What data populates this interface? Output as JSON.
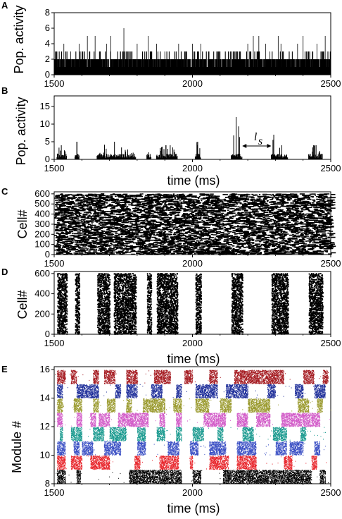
{
  "chart_data": [
    {
      "panel": "A",
      "type": "bar",
      "ylabel": "Pop. activity",
      "xlabel": "",
      "xlim": [
        1500,
        2500
      ],
      "ylim": [
        0,
        8
      ],
      "xticks": [
        "1500",
        "2000",
        "2500"
      ],
      "yticks": [
        "0",
        "2",
        "4",
        "6",
        "8"
      ],
      "baseline_activity": 2,
      "peak_times": [
        1535,
        1560,
        1590,
        1620,
        1648,
        1690,
        1705,
        1740,
        1752,
        1800,
        1840,
        1870,
        1900,
        1950,
        1975,
        2000,
        2030,
        2060,
        2100,
        2130,
        2200,
        2220,
        2240,
        2265,
        2280,
        2310,
        2320,
        2350,
        2380,
        2400,
        2450,
        2480
      ],
      "peak_values": [
        4,
        3,
        4,
        5,
        5,
        4,
        5,
        3,
        6,
        4,
        5,
        4,
        3,
        4,
        3,
        4,
        4,
        3,
        3,
        3,
        4,
        5,
        5,
        4,
        3,
        5,
        4,
        3,
        4,
        5,
        4,
        5
      ]
    },
    {
      "panel": "B",
      "type": "bar",
      "ylabel": "Pop. activity",
      "xlabel": "time (ms)",
      "xlim": [
        1500,
        2500
      ],
      "ylim": [
        0,
        18
      ],
      "xticks": [
        "1500",
        "2000",
        "2500"
      ],
      "yticks": [
        "0",
        "5",
        "10",
        "15"
      ],
      "bursts": [
        {
          "start": 1510,
          "end": 1545,
          "peak": 4
        },
        {
          "start": 1575,
          "end": 1590,
          "peak": 5
        },
        {
          "start": 1655,
          "end": 1795,
          "peak": 5
        },
        {
          "start": 1835,
          "end": 1850,
          "peak": 2
        },
        {
          "start": 1870,
          "end": 1945,
          "peak": 4
        },
        {
          "start": 2010,
          "end": 2030,
          "peak": 5
        },
        {
          "start": 2140,
          "end": 2180,
          "peak": 12
        },
        {
          "start": 2285,
          "end": 2305,
          "peak": 7
        },
        {
          "start": 2305,
          "end": 2345,
          "peak": 4
        },
        {
          "start": 2420,
          "end": 2470,
          "peak": 4
        }
      ],
      "annotation": {
        "text": "l",
        "subscript": "s",
        "from": 2180,
        "to": 2285
      }
    },
    {
      "panel": "C",
      "type": "scatter",
      "ylabel": "Cell#",
      "xlabel": "",
      "xlim": [
        1500,
        2500
      ],
      "ylim": [
        0,
        620
      ],
      "xticks": [
        "1500",
        "2000",
        "2500"
      ],
      "yticks": [
        "0",
        "100",
        "200",
        "300",
        "400",
        "500",
        "600"
      ],
      "n_cells": 600,
      "description_pattern": "dense asynchronous raster"
    },
    {
      "panel": "D",
      "type": "scatter",
      "ylabel": "Cell#",
      "xlabel": "time (ms)",
      "xlim": [
        1500,
        2500
      ],
      "ylim": [
        0,
        620
      ],
      "xticks": [
        "1500",
        "2000",
        "2500"
      ],
      "yticks": [
        "0",
        "200",
        "400",
        "600"
      ],
      "n_cells": 600,
      "burst_windows": [
        [
          1510,
          1545
        ],
        [
          1575,
          1590
        ],
        [
          1655,
          1700
        ],
        [
          1715,
          1795
        ],
        [
          1835,
          1850
        ],
        [
          1870,
          1945
        ],
        [
          2010,
          2030
        ],
        [
          2140,
          2180
        ],
        [
          2285,
          2345
        ],
        [
          2420,
          2470
        ]
      ]
    },
    {
      "panel": "E",
      "type": "scatter",
      "ylabel": "Module #",
      "xlabel": "time (ms)",
      "xlim": [
        1500,
        2500
      ],
      "ylim": [
        8,
        16.2
      ],
      "xticks": [
        "1500",
        "2000",
        "2500"
      ],
      "yticks": [
        "8",
        "10",
        "12",
        "14",
        "16"
      ],
      "modules": [
        {
          "module": 8,
          "color": "#000000",
          "bursts": [
            [
              1510,
              1540
            ],
            [
              1580,
              1595
            ],
            [
              1770,
              1960
            ],
            [
              2000,
              2030
            ],
            [
              2110,
              2430
            ],
            [
              2460,
              2480
            ]
          ]
        },
        {
          "module": 9,
          "color": "#e8262c",
          "bursts": [
            [
              1510,
              1540
            ],
            [
              1560,
              1600
            ],
            [
              1630,
              1700
            ],
            [
              1790,
              1810
            ],
            [
              1880,
              1950
            ],
            [
              1990,
              2000
            ],
            [
              2060,
              2130
            ],
            [
              2160,
              2230
            ],
            [
              2330,
              2360
            ],
            [
              2430,
              2450
            ]
          ]
        },
        {
          "module": 10,
          "color": "#3a4fc4",
          "bursts": [
            [
              1510,
              1540
            ],
            [
              1570,
              1590
            ],
            [
              1600,
              1640
            ],
            [
              1680,
              1740
            ],
            [
              1800,
              1830
            ],
            [
              1910,
              1950
            ],
            [
              1990,
              2020
            ],
            [
              2060,
              2120
            ],
            [
              2160,
              2230
            ],
            [
              2300,
              2340
            ],
            [
              2350,
              2400
            ],
            [
              2440,
              2460
            ]
          ]
        },
        {
          "module": 11,
          "color": "#1a9a8f",
          "bursts": [
            [
              1520,
              1530
            ],
            [
              1560,
              1600
            ],
            [
              1640,
              1680
            ],
            [
              1700,
              1760
            ],
            [
              1800,
              1830
            ],
            [
              1870,
              1900
            ],
            [
              1940,
              1960
            ],
            [
              2000,
              2040
            ],
            [
              2090,
              2110
            ],
            [
              2180,
              2220
            ],
            [
              2290,
              2340
            ],
            [
              2390,
              2410
            ]
          ]
        },
        {
          "module": 12,
          "color": "#d25bc8",
          "bursts": [
            [
              1510,
              1530
            ],
            [
              1580,
              1600
            ],
            [
              1630,
              1650
            ],
            [
              1660,
              1700
            ],
            [
              1730,
              1840
            ],
            [
              1880,
              1900
            ],
            [
              1940,
              1960
            ],
            [
              2040,
              2120
            ],
            [
              2160,
              2200
            ],
            [
              2230,
              2280
            ],
            [
              2320,
              2460
            ]
          ]
        },
        {
          "module": 13,
          "color": "#9a9a2e",
          "bursts": [
            [
              1510,
              1530
            ],
            [
              1570,
              1600
            ],
            [
              1640,
              1660
            ],
            [
              1690,
              1720
            ],
            [
              1760,
              1780
            ],
            [
              1820,
              1900
            ],
            [
              1930,
              1960
            ],
            [
              2010,
              2060
            ],
            [
              2100,
              2140
            ],
            [
              2200,
              2280
            ],
            [
              2380,
              2420
            ],
            [
              2450,
              2470
            ]
          ]
        },
        {
          "module": 14,
          "color": "#1f2f9a",
          "bursts": [
            [
              1510,
              1530
            ],
            [
              1580,
              1660
            ],
            [
              1720,
              1740
            ],
            [
              1760,
              1800
            ],
            [
              1850,
              1890
            ],
            [
              1940,
              1960
            ],
            [
              2010,
              2090
            ],
            [
              2120,
              2200
            ],
            [
              2270,
              2300
            ],
            [
              2370,
              2400
            ],
            [
              2440,
              2480
            ]
          ]
        },
        {
          "module": 15,
          "color": "#a51c22",
          "bursts": [
            [
              1510,
              1540
            ],
            [
              1560,
              1580
            ],
            [
              1640,
              1660
            ],
            [
              1680,
              1720
            ],
            [
              1760,
              1800
            ],
            [
              1860,
              1920
            ],
            [
              1970,
              2000
            ],
            [
              2060,
              2090
            ],
            [
              2150,
              2330
            ],
            [
              2400,
              2440
            ],
            [
              2470,
              2490
            ]
          ]
        }
      ]
    }
  ],
  "panel_letters": [
    "A",
    "B",
    "C",
    "D",
    "E"
  ],
  "time_label": "time (ms)"
}
